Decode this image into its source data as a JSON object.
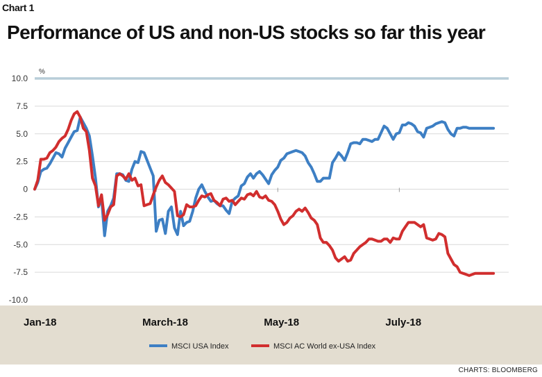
{
  "header": {
    "chart_label": "Chart 1",
    "title": "Performance of US and non-US stocks so far this year"
  },
  "source": "CHARTS: BLOOMBERG",
  "chart_data": {
    "type": "line",
    "title": "Performance of US and non-US stocks so far this year",
    "ylabel": "%",
    "ylim": [
      -10,
      10
    ],
    "yticks": [
      "10.0",
      "7.5",
      "5.0",
      "2.5",
      "0",
      "-2.5",
      "-5.0",
      "-7.5",
      "-10.0"
    ],
    "yticks_values": [
      10,
      7.5,
      5,
      2.5,
      0,
      -2.5,
      -5,
      -7.5,
      -10
    ],
    "xlim": [
      0,
      7.8
    ],
    "xticks": [
      {
        "label": "Jan-18",
        "value": 0
      },
      {
        "label": "March-18",
        "value": 2
      },
      {
        "label": "May-18",
        "value": 4
      },
      {
        "label": "July-18",
        "value": 6
      }
    ],
    "legend_position": "bottom-center",
    "series": [
      {
        "name": "MSCI USA Index",
        "color": "#3d7fc4",
        "x": [
          0.0,
          0.05,
          0.1,
          0.15,
          0.2,
          0.25,
          0.3,
          0.35,
          0.4,
          0.45,
          0.5,
          0.55,
          0.6,
          0.65,
          0.7,
          0.75,
          0.8,
          0.85,
          0.9,
          0.95,
          1.0,
          1.05,
          1.1,
          1.15,
          1.2,
          1.25,
          1.3,
          1.35,
          1.4,
          1.45,
          1.5,
          1.55,
          1.6,
          1.65,
          1.7,
          1.75,
          1.8,
          1.85,
          1.9,
          1.95,
          2.0,
          2.05,
          2.1,
          2.15,
          2.2,
          2.25,
          2.3,
          2.35,
          2.4,
          2.45,
          2.5,
          2.55,
          2.6,
          2.65,
          2.7,
          2.75,
          2.8,
          2.85,
          2.9,
          2.95,
          3.0,
          3.05,
          3.1,
          3.15,
          3.2,
          3.25,
          3.3,
          3.35,
          3.4,
          3.45,
          3.5,
          3.55,
          3.6,
          3.65,
          3.7,
          3.75,
          3.8,
          3.85,
          3.9,
          3.95,
          4.0,
          4.05,
          4.1,
          4.15,
          4.2,
          4.25,
          4.3,
          4.35,
          4.4,
          4.45,
          4.5,
          4.55,
          4.6,
          4.65,
          4.7,
          4.75,
          4.8,
          4.85,
          4.9,
          4.95,
          5.0,
          5.05,
          5.1,
          5.15,
          5.2,
          5.25,
          5.3,
          5.35,
          5.4,
          5.45,
          5.5,
          5.55,
          5.6,
          5.65,
          5.7,
          5.75,
          5.8,
          5.85,
          5.9,
          5.95,
          6.0,
          6.05,
          6.1,
          6.15,
          6.2,
          6.25,
          6.3,
          6.35,
          6.4,
          6.45,
          6.5,
          6.55,
          6.6,
          6.65,
          6.7,
          6.75,
          6.8,
          6.85,
          6.9,
          6.95,
          7.0,
          7.05,
          7.1,
          7.15,
          7.2,
          7.25,
          7.3,
          7.35,
          7.4,
          7.45,
          7.5,
          7.55
        ],
        "y": [
          0.0,
          0.6,
          1.6,
          1.8,
          1.9,
          2.3,
          2.8,
          3.3,
          3.2,
          2.9,
          3.7,
          4.2,
          4.7,
          5.2,
          5.3,
          6.5,
          6.0,
          5.5,
          4.8,
          3.0,
          1.0,
          -1.6,
          -0.8,
          -4.2,
          -2.0,
          -1.5,
          -0.8,
          1.4,
          1.4,
          1.3,
          0.8,
          0.7,
          1.8,
          2.5,
          2.4,
          3.4,
          3.3,
          2.6,
          1.9,
          1.2,
          -3.8,
          -2.8,
          -2.7,
          -4.0,
          -2.0,
          -1.6,
          -3.5,
          -4.1,
          -2.0,
          -3.3,
          -3.0,
          -2.9,
          -2.0,
          -0.8,
          0.0,
          0.4,
          -0.2,
          -0.7,
          -1.1,
          -1.0,
          -1.3,
          -1.5,
          -1.5,
          -1.9,
          -2.2,
          -1.1,
          -0.8,
          -0.6,
          0.3,
          0.5,
          1.1,
          1.4,
          1.0,
          1.4,
          1.6,
          1.3,
          0.9,
          0.5,
          1.3,
          1.7,
          2.0,
          2.6,
          2.8,
          3.2,
          3.3,
          3.4,
          3.5,
          3.4,
          3.3,
          3.0,
          2.4,
          2.0,
          1.4,
          0.7,
          0.7,
          1.0,
          1.0,
          1.0,
          2.4,
          2.8,
          3.3,
          3.0,
          2.6,
          3.3,
          4.1,
          4.2,
          4.2,
          4.1,
          4.5,
          4.5,
          4.4,
          4.3,
          4.5,
          4.5,
          5.1,
          5.7,
          5.5,
          5.0,
          4.5,
          5.0,
          5.1,
          5.8,
          5.8,
          6.0,
          5.9,
          5.7,
          5.2,
          5.1,
          4.7,
          5.5,
          5.6,
          5.7,
          5.9,
          6.0,
          6.1,
          6.0,
          5.4,
          5.0,
          4.8,
          5.5,
          5.5,
          5.6,
          5.6,
          5.5,
          5.5,
          5.5,
          5.5,
          5.5,
          5.5,
          5.5,
          5.5,
          5.5
        ]
      },
      {
        "name": "MSCI AC World ex-USA Index",
        "color": "#d12e2e",
        "x": [
          0.0,
          0.05,
          0.1,
          0.15,
          0.2,
          0.25,
          0.3,
          0.35,
          0.4,
          0.45,
          0.5,
          0.55,
          0.6,
          0.65,
          0.7,
          0.75,
          0.8,
          0.85,
          0.9,
          0.95,
          1.0,
          1.05,
          1.1,
          1.15,
          1.2,
          1.25,
          1.3,
          1.35,
          1.4,
          1.45,
          1.5,
          1.55,
          1.6,
          1.65,
          1.7,
          1.75,
          1.8,
          1.85,
          1.9,
          1.95,
          2.0,
          2.05,
          2.1,
          2.15,
          2.2,
          2.25,
          2.3,
          2.35,
          2.4,
          2.45,
          2.5,
          2.55,
          2.6,
          2.65,
          2.7,
          2.75,
          2.8,
          2.85,
          2.9,
          2.95,
          3.0,
          3.05,
          3.1,
          3.15,
          3.2,
          3.25,
          3.3,
          3.35,
          3.4,
          3.45,
          3.5,
          3.55,
          3.6,
          3.65,
          3.7,
          3.75,
          3.8,
          3.85,
          3.9,
          3.95,
          4.0,
          4.05,
          4.1,
          4.15,
          4.2,
          4.25,
          4.3,
          4.35,
          4.4,
          4.45,
          4.5,
          4.55,
          4.6,
          4.65,
          4.7,
          4.75,
          4.8,
          4.85,
          4.9,
          4.95,
          5.0,
          5.05,
          5.1,
          5.15,
          5.2,
          5.25,
          5.3,
          5.35,
          5.4,
          5.45,
          5.5,
          5.55,
          5.6,
          5.65,
          5.7,
          5.75,
          5.8,
          5.85,
          5.9,
          5.95,
          6.0,
          6.05,
          6.1,
          6.15,
          6.2,
          6.25,
          6.3,
          6.35,
          6.4,
          6.45,
          6.5,
          6.55,
          6.6,
          6.65,
          6.7,
          6.75,
          6.8,
          6.85,
          6.9,
          6.95,
          7.0,
          7.05,
          7.1,
          7.15,
          7.2,
          7.25,
          7.3,
          7.35,
          7.4,
          7.45,
          7.5,
          7.55
        ],
        "y": [
          0.0,
          0.8,
          2.7,
          2.7,
          2.8,
          3.3,
          3.5,
          3.8,
          4.3,
          4.6,
          4.8,
          5.4,
          6.2,
          6.8,
          7.0,
          6.5,
          5.5,
          5.2,
          3.5,
          1.0,
          0.3,
          -1.5,
          -0.5,
          -2.8,
          -2.3,
          -1.6,
          -1.4,
          1.2,
          1.4,
          1.2,
          0.9,
          1.4,
          0.8,
          1.0,
          0.3,
          0.4,
          -1.5,
          -1.4,
          -1.3,
          -0.5,
          0.2,
          0.8,
          1.2,
          0.6,
          0.4,
          0.1,
          -0.2,
          -2.4,
          -2.5,
          -2.3,
          -1.4,
          -1.6,
          -1.6,
          -1.5,
          -1.0,
          -0.6,
          -0.7,
          -0.5,
          -0.4,
          -1.0,
          -1.2,
          -1.5,
          -0.9,
          -0.8,
          -1.1,
          -1.0,
          -1.4,
          -1.1,
          -0.8,
          -0.9,
          -0.5,
          -0.4,
          -0.6,
          -0.2,
          -0.7,
          -0.8,
          -0.6,
          -1.0,
          -1.1,
          -1.4,
          -2.0,
          -2.7,
          -3.2,
          -3.0,
          -2.6,
          -2.4,
          -2.0,
          -1.8,
          -2.0,
          -1.7,
          -2.1,
          -2.6,
          -2.8,
          -3.2,
          -4.4,
          -4.8,
          -4.8,
          -5.1,
          -5.5,
          -6.2,
          -6.5,
          -6.3,
          -6.1,
          -6.5,
          -6.4,
          -5.8,
          -5.5,
          -5.2,
          -5.0,
          -4.8,
          -4.5,
          -4.5,
          -4.6,
          -4.7,
          -4.7,
          -4.5,
          -4.5,
          -4.8,
          -4.4,
          -4.5,
          -4.5,
          -3.8,
          -3.4,
          -3.0,
          -3.0,
          -3.0,
          -3.2,
          -3.4,
          -3.2,
          -4.4,
          -4.5,
          -4.6,
          -4.5,
          -4.0,
          -4.1,
          -4.3,
          -5.8,
          -6.3,
          -6.8,
          -7.0,
          -7.5,
          -7.6,
          -7.7,
          -7.8,
          -7.7,
          -7.6,
          -7.6,
          -7.6,
          -7.6,
          -7.6,
          -7.6,
          -7.6
        ]
      }
    ]
  }
}
